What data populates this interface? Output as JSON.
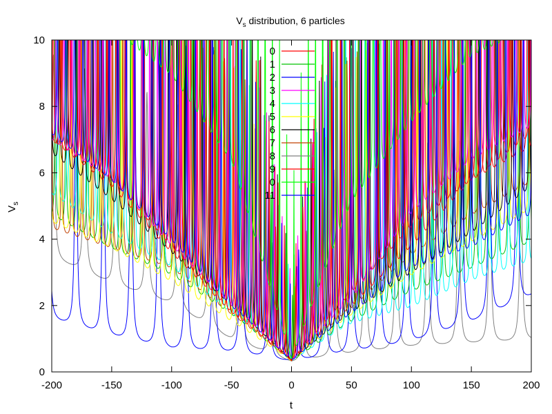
{
  "chart_data": {
    "type": "line",
    "title_main": "V",
    "title_sub": "s",
    "title_rest": " distribution, 6 particles",
    "xlabel": "t",
    "ylabel_main": "V",
    "ylabel_sub": "s",
    "xlim": [
      -200,
      200
    ],
    "ylim": [
      0,
      10
    ],
    "xticks": [
      "-200",
      "-150",
      "-100",
      "-50",
      "0",
      "50",
      "100",
      "150",
      "200"
    ],
    "yticks": [
      "0",
      "2",
      "4",
      "6",
      "8",
      "10"
    ],
    "grid": false,
    "legend_position": "top-center",
    "series": [
      {
        "name": "0",
        "color": "#ff0000",
        "base": [
          6.8,
          5.6,
          3.6,
          1.6,
          0.3,
          1.8,
          3.6,
          5.6,
          7.0
        ],
        "spike": 2.2,
        "period": 7.5
      },
      {
        "name": "1",
        "color": "#00c000",
        "base": [
          4.6,
          3.6,
          2.8,
          1.6,
          0.3,
          1.4,
          2.3,
          3.0,
          3.8
        ],
        "spike": 1.6,
        "period": 9.0
      },
      {
        "name": "2",
        "color": "#0000ff",
        "base": [
          1.5,
          1.0,
          0.6,
          0.5,
          0.3,
          0.5,
          0.8,
          1.4,
          2.2
        ],
        "spike": 1.8,
        "period": 23.0
      },
      {
        "name": "3",
        "color": "#ff00ff",
        "base": [
          6.8,
          5.6,
          3.6,
          1.8,
          0.3,
          2.0,
          4.6,
          6.2,
          7.2
        ],
        "spike": 2.4,
        "period": 6.5
      },
      {
        "name": "4",
        "color": "#00ffff",
        "base": [
          5.2,
          4.0,
          3.0,
          1.6,
          0.3,
          1.3,
          1.8,
          2.6,
          3.2
        ],
        "spike": 2.0,
        "period": 8.0
      },
      {
        "name": "5",
        "color": "#ffff00",
        "base": [
          4.4,
          3.6,
          2.6,
          1.4,
          0.3,
          1.6,
          2.8,
          3.8,
          4.8
        ],
        "spike": 1.5,
        "period": 8.5
      },
      {
        "name": "6",
        "color": "#000000",
        "base": [
          6.4,
          5.0,
          3.4,
          1.8,
          0.3,
          1.6,
          2.8,
          4.0,
          5.4
        ],
        "spike": 2.3,
        "period": 7.0
      },
      {
        "name": "7",
        "color": "#c04000",
        "base": [
          4.2,
          3.6,
          3.0,
          1.6,
          0.3,
          1.8,
          3.4,
          4.6,
          5.6
        ],
        "spike": 1.6,
        "period": 8.5
      },
      {
        "name": "8",
        "color": "#808080",
        "base": [
          3.4,
          2.6,
          2.0,
          0.9,
          0.3,
          0.5,
          0.7,
          0.8,
          0.9
        ],
        "spike": 1.2,
        "period": 26.0
      },
      {
        "name": "9",
        "color": "#ff0000",
        "base": [
          6.8,
          5.4,
          3.4,
          1.6,
          0.3,
          2.2,
          4.2,
          5.6,
          6.6
        ],
        "spike": 2.2,
        "period": 7.8
      },
      {
        "name": "0",
        "color": "#00ff00",
        "base": [
          10.0,
          10.0,
          8.6,
          6.0,
          0.3,
          4.8,
          7.2,
          9.2,
          10.0
        ],
        "spike": 4.0,
        "period": 6.0
      },
      {
        "name": "11",
        "color": "#0000ff",
        "base": [
          7.0,
          5.6,
          3.8,
          1.8,
          0.3,
          1.6,
          3.0,
          3.6,
          4.6
        ],
        "spike": 2.0,
        "period": 7.2
      }
    ]
  }
}
